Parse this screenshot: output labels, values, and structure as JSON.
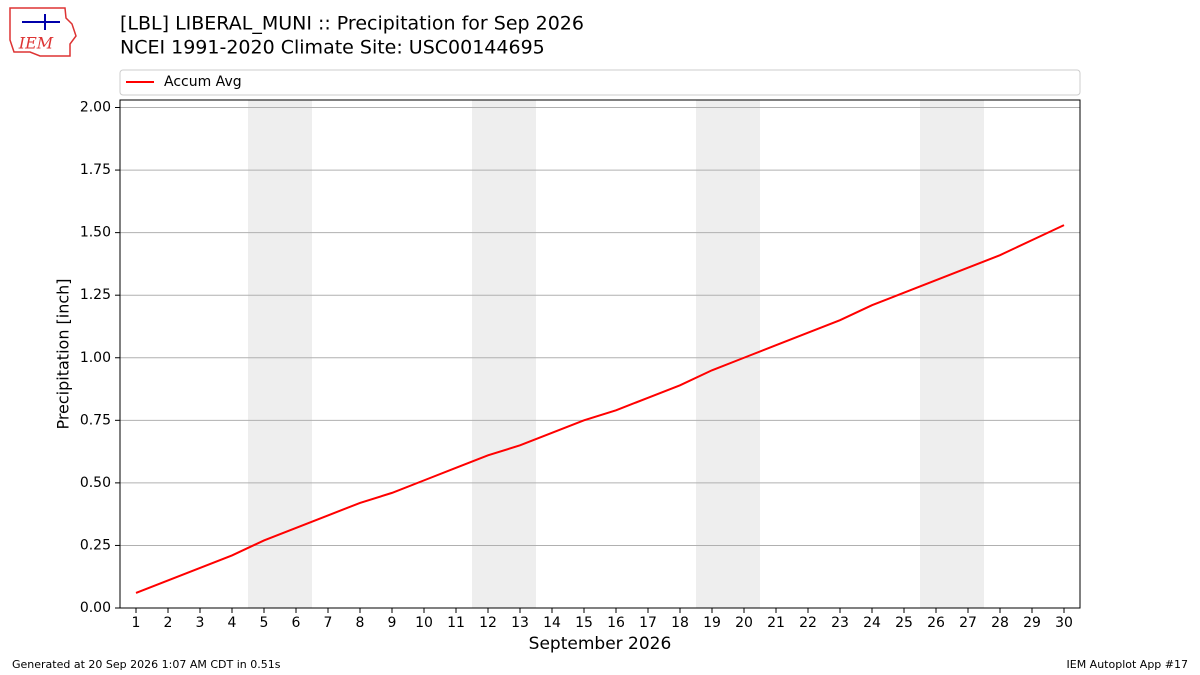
{
  "chart_data": {
    "type": "line",
    "title": "[LBL] LIBERAL_MUNI :: Precipitation for Sep 2026",
    "subtitle": "NCEI 1991-2020 Climate Site: USC00144695",
    "logo_text": "IEM",
    "x_label": "September 2026",
    "y_label": "Precipitation [inch]",
    "x": [
      1,
      2,
      3,
      4,
      5,
      6,
      7,
      8,
      9,
      10,
      11,
      12,
      13,
      14,
      15,
      16,
      17,
      18,
      19,
      20,
      21,
      22,
      23,
      24,
      25,
      26,
      27,
      28,
      29,
      30
    ],
    "series": [
      {
        "name": "Accum Avg",
        "color": "#ff0000",
        "values": [
          0.06,
          0.11,
          0.16,
          0.21,
          0.27,
          0.32,
          0.37,
          0.42,
          0.46,
          0.51,
          0.56,
          0.61,
          0.65,
          0.7,
          0.75,
          0.79,
          0.84,
          0.89,
          0.95,
          1.0,
          1.05,
          1.1,
          1.15,
          1.21,
          1.26,
          1.31,
          1.36,
          1.41,
          1.47,
          1.53
        ]
      }
    ],
    "weekend_spans": [
      [
        4.5,
        6.5
      ],
      [
        11.5,
        13.5
      ],
      [
        18.5,
        20.5
      ],
      [
        25.5,
        27.5
      ]
    ],
    "xlim": [
      0.5,
      30.5
    ],
    "ylim": [
      0,
      2.03
    ],
    "xticks": [
      1,
      2,
      3,
      4,
      5,
      6,
      7,
      8,
      9,
      10,
      11,
      12,
      13,
      14,
      15,
      16,
      17,
      18,
      19,
      20,
      21,
      22,
      23,
      24,
      25,
      26,
      27,
      28,
      29,
      30
    ],
    "yticks": [
      {
        "value": 0,
        "label": "0.00"
      },
      {
        "value": 0.25,
        "label": "0.25"
      },
      {
        "value": 0.5,
        "label": "0.50"
      },
      {
        "value": 0.75,
        "label": "0.75"
      },
      {
        "value": 1,
        "label": "1.00"
      },
      {
        "value": 1.25,
        "label": "1.25"
      },
      {
        "value": 1.5,
        "label": "1.50"
      },
      {
        "value": 1.75,
        "label": "1.75"
      },
      {
        "value": 2,
        "label": "2.00"
      }
    ],
    "grid": true,
    "footer_left": "Generated at 20 Sep 2026 1:07 AM CDT in 0.51s",
    "footer_right": "IEM Autoplot App #17"
  }
}
